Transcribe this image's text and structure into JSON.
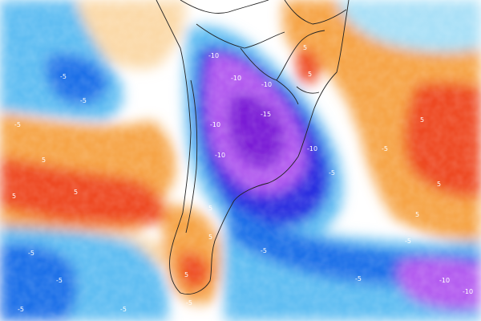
{
  "map": {
    "region": "southern-south-america-and-adjacent-oceans",
    "layer": "temperature-anomaly-shaded",
    "palette": {
      "strong_cold": "#7a1fd6",
      "cold_violet": "#b35cf0",
      "deep_blue": "#2a2ee0",
      "blue": "#1e6fe8",
      "light_blue": "#5fbdf2",
      "pale_blue": "#a9e0f7",
      "neutral": "#ffffff",
      "pale_orange": "#fbd9a8",
      "orange": "#f6a447",
      "warm_red": "#ee4a24",
      "strong_warm": "#c81e14",
      "land_border": "#222222",
      "isoline": "#f2f2f2"
    },
    "contour_labels": [
      {
        "text": "-5"
      },
      {
        "text": "-5"
      },
      {
        "text": "-5"
      },
      {
        "text": "-10"
      },
      {
        "text": "-10"
      },
      {
        "text": "-10"
      },
      {
        "text": "-10"
      },
      {
        "text": "-10"
      },
      {
        "text": "-15"
      },
      {
        "text": "-10"
      },
      {
        "text": "-5"
      },
      {
        "text": "-5"
      },
      {
        "text": "5"
      },
      {
        "text": "5"
      },
      {
        "text": "5"
      },
      {
        "text": "5"
      },
      {
        "text": "5"
      },
      {
        "text": "5"
      },
      {
        "text": "5"
      },
      {
        "text": "5"
      },
      {
        "text": "5"
      },
      {
        "text": "-5"
      },
      {
        "text": "-5"
      },
      {
        "text": "-5"
      },
      {
        "text": "-5"
      },
      {
        "text": "-5"
      },
      {
        "text": "-5"
      },
      {
        "text": "-10"
      },
      {
        "text": "-10"
      },
      {
        "text": "-5"
      },
      {
        "text": "5"
      },
      {
        "text": "5"
      },
      {
        "text": "-5"
      }
    ]
  }
}
